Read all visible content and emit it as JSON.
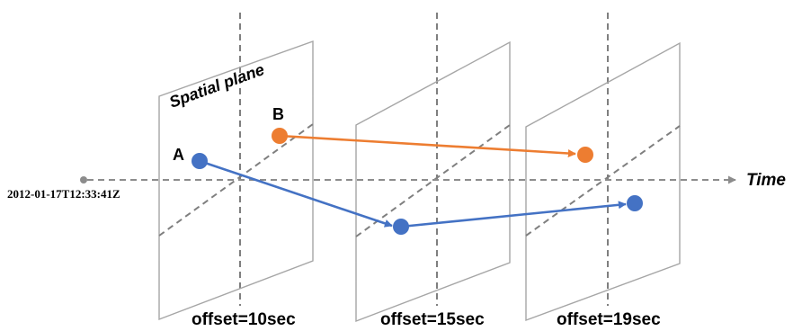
{
  "labels": {
    "spatial_plane": "Spatial plane",
    "time_axis": "Time",
    "start_timestamp": "2012-01-17T12:33:41Z",
    "point_a": "A",
    "point_b": "B"
  },
  "offsets": [
    "offset=10sec",
    "offset=15sec",
    "offset=19sec"
  ],
  "colors": {
    "trajectory_a": "#4472c4",
    "trajectory_b": "#ed7d31",
    "plane_border": "#a6a6a6",
    "guide_dashes": "#7f7f7f"
  }
}
